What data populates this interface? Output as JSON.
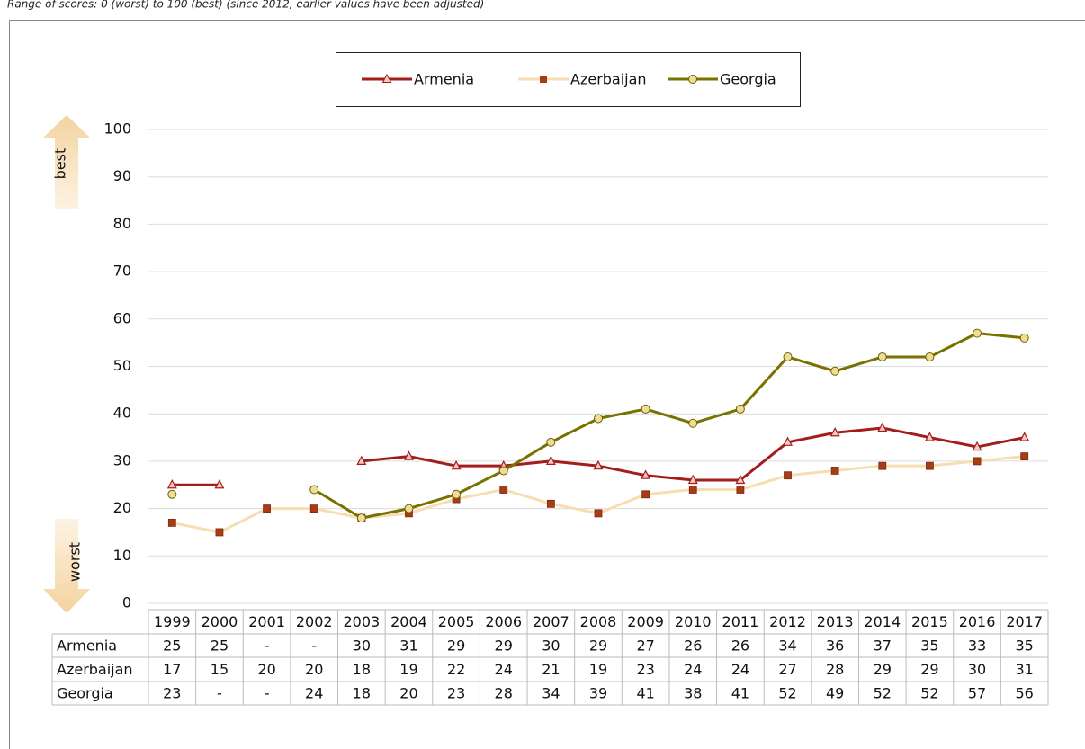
{
  "chart_data": {
    "type": "line",
    "subtitle": "Range of scores: 0 (worst) to 100 (best) (since 2012, earlier values have been adjusted)",
    "annotations": [
      "best",
      "worst"
    ],
    "categories": [
      "1999",
      "2000",
      "2001",
      "2002",
      "2003",
      "2004",
      "2005",
      "2006",
      "2007",
      "2008",
      "2009",
      "2010",
      "2011",
      "2012",
      "2013",
      "2014",
      "2015",
      "2016",
      "2017"
    ],
    "series": [
      {
        "name": "Armenia",
        "color": "#a31d1d",
        "marker": "triangle",
        "marker_fill": "#f6c9c0",
        "values": [
          25,
          25,
          null,
          null,
          30,
          31,
          29,
          29,
          30,
          29,
          27,
          26,
          26,
          34,
          36,
          37,
          35,
          33,
          35
        ],
        "value_labels": [
          "25",
          "25",
          "-",
          "-",
          "30",
          "31",
          "29",
          "29",
          "30",
          "29",
          "27",
          "26",
          "26",
          "34",
          "36",
          "37",
          "35",
          "33",
          "35"
        ]
      },
      {
        "name": "Azerbaijan",
        "color": "#f6deb0",
        "marker": "square",
        "marker_fill": "#a83c16",
        "values": [
          17,
          15,
          20,
          20,
          18,
          19,
          22,
          24,
          21,
          19,
          23,
          24,
          24,
          27,
          28,
          29,
          29,
          30,
          31
        ],
        "value_labels": [
          "17",
          "15",
          "20",
          "20",
          "18",
          "19",
          "22",
          "24",
          "21",
          "19",
          "23",
          "24",
          "24",
          "27",
          "28",
          "29",
          "29",
          "30",
          "31"
        ]
      },
      {
        "name": "Georgia",
        "color": "#7a7200",
        "marker": "circle",
        "marker_fill": "#efdc96",
        "values": [
          23,
          null,
          null,
          24,
          18,
          20,
          23,
          28,
          34,
          39,
          41,
          38,
          41,
          52,
          49,
          52,
          52,
          57,
          56
        ],
        "value_labels": [
          "23",
          "-",
          "-",
          "24",
          "18",
          "20",
          "23",
          "28",
          "34",
          "39",
          "41",
          "38",
          "41",
          "52",
          "49",
          "52",
          "52",
          "57",
          "56"
        ]
      }
    ],
    "ylim": [
      0,
      100
    ],
    "yticks": [
      0,
      10,
      20,
      30,
      40,
      50,
      60,
      70,
      80,
      90,
      100
    ],
    "grid": true
  }
}
